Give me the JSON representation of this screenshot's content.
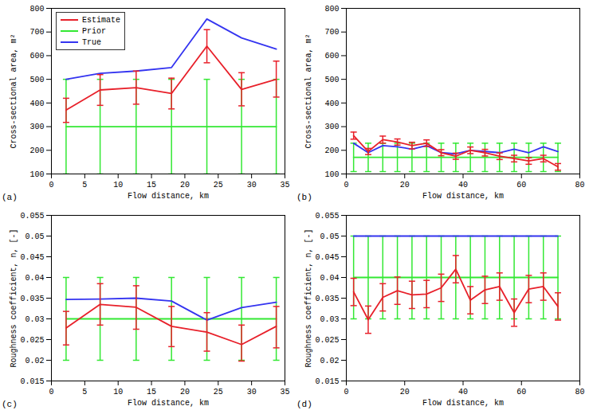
{
  "chart_data": [
    {
      "type": "line",
      "panel_label": "(a)",
      "xlabel": "Flow distance, km",
      "ylabel": "Cross-sectional area, m²",
      "xlim": [
        0,
        35
      ],
      "xticks": [
        0,
        5,
        10,
        15,
        20,
        25,
        30,
        35
      ],
      "ylim": [
        100,
        800
      ],
      "yticks": [
        100,
        200,
        300,
        400,
        500,
        600,
        700,
        800
      ],
      "legend": "upper left",
      "x": [
        2.2,
        7.3,
        12.7,
        18,
        23.3,
        28.5,
        33.7
      ],
      "series": [
        {
          "name": "Estimate",
          "color": "#e8202a",
          "values": [
            370,
            455,
            465,
            440,
            640,
            457,
            500
          ],
          "error_lower": [
            318,
            390,
            395,
            375,
            570,
            388,
            425
          ],
          "error_upper": [
            420,
            520,
            535,
            505,
            710,
            528,
            577
          ]
        },
        {
          "name": "Prior",
          "color": "#33e833",
          "values": [
            300,
            300,
            300,
            300,
            300,
            300,
            300
          ],
          "error_lower": [
            100,
            100,
            100,
            100,
            100,
            100,
            100
          ],
          "error_upper": [
            500,
            500,
            500,
            500,
            500,
            500,
            500
          ]
        },
        {
          "name": "True",
          "color": "#3434f0",
          "values": [
            500,
            525,
            535,
            550,
            755,
            675,
            628
          ]
        }
      ]
    },
    {
      "type": "line",
      "panel_label": "(b)",
      "xlabel": "Flow distance, km",
      "ylabel": "Cross-sectional area, m²",
      "xlim": [
        0,
        80
      ],
      "xticks": [
        0,
        20,
        40,
        60,
        80
      ],
      "ylim": [
        100,
        800
      ],
      "yticks": [
        100,
        200,
        300,
        400,
        500,
        600,
        700,
        800
      ],
      "x": [
        2.5,
        7.5,
        12.5,
        17.5,
        22.5,
        27.5,
        32.5,
        37.5,
        42.5,
        47.5,
        52.5,
        57.5,
        62.5,
        67.5,
        72.5
      ],
      "series": [
        {
          "name": "Estimate",
          "color": "#e8202a",
          "values": [
            262,
            195,
            245,
            235,
            220,
            230,
            190,
            175,
            200,
            190,
            175,
            165,
            155,
            165,
            130
          ],
          "error_lower": [
            247,
            182,
            230,
            222,
            206,
            216,
            177,
            162,
            186,
            176,
            161,
            151,
            141,
            151,
            116
          ],
          "error_upper": [
            277,
            208,
            260,
            248,
            234,
            244,
            203,
            188,
            214,
            204,
            189,
            179,
            169,
            179,
            144
          ]
        },
        {
          "name": "Prior",
          "color": "#33e833",
          "values": [
            170,
            170,
            170,
            170,
            170,
            170,
            170,
            170,
            170,
            170,
            170,
            170,
            170,
            170,
            170
          ],
          "error_lower": [
            110,
            110,
            110,
            110,
            110,
            110,
            110,
            110,
            110,
            110,
            110,
            110,
            110,
            110,
            110
          ],
          "error_upper": [
            230,
            230,
            230,
            230,
            230,
            230,
            230,
            230,
            230,
            230,
            230,
            230,
            230,
            230,
            230
          ]
        },
        {
          "name": "True",
          "color": "#3434f0",
          "values": [
            230,
            190,
            220,
            215,
            205,
            220,
            190,
            185,
            200,
            195,
            190,
            205,
            190,
            215,
            195
          ]
        }
      ]
    },
    {
      "type": "line",
      "panel_label": "(c)",
      "xlabel": "Flow distance, km",
      "ylabel": "Roughness coefficient, n, [-]",
      "xlim": [
        0,
        35
      ],
      "xticks": [
        0,
        5,
        10,
        15,
        20,
        25,
        30,
        35
      ],
      "ylim": [
        0.015,
        0.055
      ],
      "yticks": [
        0.015,
        0.02,
        0.025,
        0.03,
        0.035,
        0.04,
        0.045,
        0.05,
        0.055
      ],
      "x": [
        2.2,
        7.3,
        12.7,
        18,
        23.3,
        28.5,
        33.7
      ],
      "series": [
        {
          "name": "Estimate",
          "color": "#e8202a",
          "values": [
            0.0278,
            0.0335,
            0.0328,
            0.0282,
            0.0268,
            0.0238,
            0.0282
          ],
          "error_lower": [
            0.0237,
            0.0285,
            0.0275,
            0.0233,
            0.0222,
            0.0198,
            0.023
          ],
          "error_upper": [
            0.0318,
            0.0385,
            0.038,
            0.033,
            0.0315,
            0.0285,
            0.033
          ]
        },
        {
          "name": "Prior",
          "color": "#33e833",
          "values": [
            0.03,
            0.03,
            0.03,
            0.03,
            0.03,
            0.03,
            0.03
          ],
          "error_lower": [
            0.02,
            0.02,
            0.02,
            0.02,
            0.02,
            0.02,
            0.02
          ],
          "error_upper": [
            0.04,
            0.04,
            0.04,
            0.04,
            0.04,
            0.04,
            0.04
          ]
        },
        {
          "name": "True",
          "color": "#3434f0",
          "values": [
            0.0347,
            0.0348,
            0.035,
            0.0343,
            0.0297,
            0.0327,
            0.034
          ]
        }
      ]
    },
    {
      "type": "line",
      "panel_label": "(d)",
      "xlabel": "Flow distance, km",
      "ylabel": "Roughness coefficient, n, [-]",
      "xlim": [
        0,
        80
      ],
      "xticks": [
        0,
        20,
        40,
        60,
        80
      ],
      "ylim": [
        0.015,
        0.055
      ],
      "yticks": [
        0.015,
        0.02,
        0.025,
        0.03,
        0.035,
        0.04,
        0.045,
        0.05,
        0.055
      ],
      "x": [
        2.5,
        7.5,
        12.5,
        17.5,
        22.5,
        27.5,
        32.5,
        37.5,
        42.5,
        47.5,
        52.5,
        57.5,
        62.5,
        67.5,
        72.5
      ],
      "series": [
        {
          "name": "Estimate",
          "color": "#e8202a",
          "values": [
            0.0365,
            0.0298,
            0.0352,
            0.0368,
            0.0358,
            0.036,
            0.0375,
            0.042,
            0.0345,
            0.037,
            0.0378,
            0.0315,
            0.0372,
            0.0378,
            0.033
          ],
          "error_lower": [
            0.0332,
            0.0265,
            0.0319,
            0.0335,
            0.0325,
            0.0327,
            0.0342,
            0.0387,
            0.0312,
            0.0337,
            0.0345,
            0.0282,
            0.0339,
            0.0345,
            0.0297
          ],
          "error_upper": [
            0.0398,
            0.0331,
            0.0385,
            0.0401,
            0.0391,
            0.0393,
            0.0408,
            0.0453,
            0.0378,
            0.0403,
            0.0411,
            0.0348,
            0.0405,
            0.0411,
            0.0363
          ]
        },
        {
          "name": "Prior",
          "color": "#33e833",
          "values": [
            0.04,
            0.04,
            0.04,
            0.04,
            0.04,
            0.04,
            0.04,
            0.04,
            0.04,
            0.04,
            0.04,
            0.04,
            0.04,
            0.04,
            0.04
          ],
          "error_lower": [
            0.03,
            0.03,
            0.03,
            0.03,
            0.03,
            0.03,
            0.03,
            0.03,
            0.03,
            0.03,
            0.03,
            0.03,
            0.03,
            0.03,
            0.03
          ],
          "error_upper": [
            0.05,
            0.05,
            0.05,
            0.05,
            0.05,
            0.05,
            0.05,
            0.05,
            0.05,
            0.05,
            0.05,
            0.05,
            0.05,
            0.05,
            0.05
          ]
        },
        {
          "name": "True",
          "color": "#3434f0",
          "values": [
            0.05,
            0.05,
            0.05,
            0.05,
            0.05,
            0.05,
            0.05,
            0.05,
            0.05,
            0.05,
            0.05,
            0.05,
            0.05,
            0.05,
            0.05
          ]
        }
      ]
    }
  ]
}
